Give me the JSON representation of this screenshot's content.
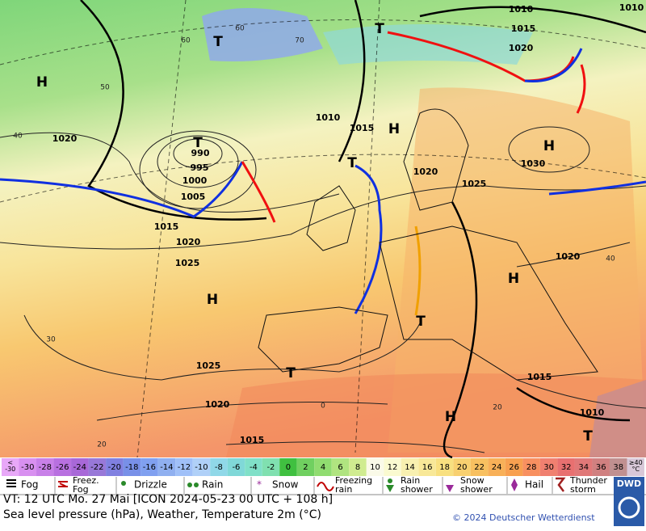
{
  "map": {
    "highs": [
      "H",
      "H",
      "H",
      "H",
      "H",
      "H"
    ],
    "lows": [
      "T",
      "T",
      "T",
      "T",
      "T",
      "T",
      "T"
    ],
    "isobar_labels": [
      "1010",
      "1015",
      "1020",
      "1010",
      "1010",
      "1015",
      "1020",
      "990",
      "995",
      "1000",
      "1005",
      "1015",
      "1020",
      "1025",
      "1020",
      "1025",
      "1030",
      "1020",
      "1025",
      "1020",
      "1015",
      "1010",
      "1015"
    ],
    "temperature_labels": [
      "60",
      "50",
      "40",
      "30",
      "20",
      "70",
      "60",
      "40",
      "20",
      "0"
    ]
  },
  "temperature_scale": [
    {
      "label": "<\n-30",
      "color": "#e8a8f8"
    },
    {
      "label": "-30",
      "color": "#d890f0"
    },
    {
      "label": "-28",
      "color": "#c880e8"
    },
    {
      "label": "-26",
      "color": "#b870e0"
    },
    {
      "label": "-24",
      "color": "#a868d8"
    },
    {
      "label": "-22",
      "color": "#9878d8"
    },
    {
      "label": "-20",
      "color": "#8080e0"
    },
    {
      "label": "-18",
      "color": "#7890e8"
    },
    {
      "label": "-16",
      "color": "#80a0f0"
    },
    {
      "label": "-14",
      "color": "#90b0f0"
    },
    {
      "label": "-12",
      "color": "#a0c0f8"
    },
    {
      "label": "-10",
      "color": "#b0d0f8"
    },
    {
      "label": "-8",
      "color": "#90d8e8"
    },
    {
      "label": "-6",
      "color": "#80d8d8"
    },
    {
      "label": "-4",
      "color": "#80e0c8"
    },
    {
      "label": "-2",
      "color": "#80e0b0"
    },
    {
      "label": "0",
      "color": "#40c040"
    },
    {
      "label": "2",
      "color": "#70d060"
    },
    {
      "label": "4",
      "color": "#90dc70"
    },
    {
      "label": "6",
      "color": "#b0e480"
    },
    {
      "label": "8",
      "color": "#d0ec90"
    },
    {
      "label": "10",
      "color": "#fafae8"
    },
    {
      "label": "12",
      "color": "#fafad0"
    },
    {
      "label": "14",
      "color": "#f8f0b0"
    },
    {
      "label": "16",
      "color": "#f8e898"
    },
    {
      "label": "18",
      "color": "#f8e080"
    },
    {
      "label": "20",
      "color": "#f8d070"
    },
    {
      "label": "22",
      "color": "#f8c060"
    },
    {
      "label": "24",
      "color": "#f8b058"
    },
    {
      "label": "26",
      "color": "#f8a050"
    },
    {
      "label": "28",
      "color": "#f89060"
    },
    {
      "label": "30",
      "color": "#f08070"
    },
    {
      "label": "32",
      "color": "#e87070"
    },
    {
      "label": "34",
      "color": "#e07878"
    },
    {
      "label": "36",
      "color": "#d08080"
    },
    {
      "label": "38",
      "color": "#c09090"
    },
    {
      "label": "≥40\n°C",
      "color": "#d8c8d8"
    }
  ],
  "weather_legend": [
    "Fog",
    "Freez.\nFog",
    "Drizzle",
    "Rain",
    "Snow",
    "Freezing\nrain",
    "Rain\nshower",
    "Snow\nshower",
    "Hail",
    "Thunder\nstorm"
  ],
  "footer": {
    "valid_time": "VT: 12 UTC Mo.  27 Mai [ICON 2024-05-23  00 UTC + 108 h]",
    "description": "Sea level pressure (hPa), Weather, Temperature 2m (°C)",
    "copyright": "© 2024 Deutscher Wetterdienst",
    "logo": "DWD"
  }
}
